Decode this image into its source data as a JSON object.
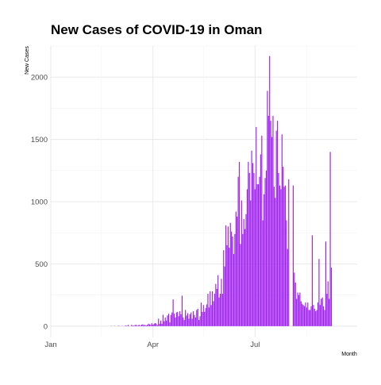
{
  "chart_data": {
    "type": "bar",
    "title": "New Cases of COVID-19 in Oman",
    "xlabel": "Month",
    "ylabel": "New Cases",
    "x_tick_labels": [
      "Jan",
      "Apr",
      "Jul"
    ],
    "y_ticks": [
      0,
      500,
      1000,
      1500,
      2000
    ],
    "x_range": [
      "2020-01-01",
      "2020-09-30"
    ],
    "ylim": [
      -90,
      2250
    ],
    "grid": true,
    "bar_color": "#a020f0",
    "series": [
      {
        "start_date": "2020-02-24",
        "values": [
          2,
          0,
          1,
          2,
          0,
          0,
          3,
          2,
          0,
          1,
          2,
          0,
          3,
          5,
          3,
          10,
          2,
          0,
          10,
          5,
          4,
          9,
          10,
          4,
          8,
          10,
          4,
          12,
          15,
          8,
          10,
          6,
          10,
          20,
          15,
          10,
          24,
          11,
          20,
          25,
          21,
          8,
          60,
          20,
          45,
          19,
          92,
          40,
          70,
          45,
          86,
          100,
          30,
          90,
          110,
          215,
          100,
          70,
          110,
          115,
          80,
          120,
          95,
          245,
          70,
          50,
          130,
          85,
          105,
          60,
          95,
          110,
          60,
          120,
          90,
          70,
          130,
          140,
          50,
          80,
          190,
          115,
          170,
          115,
          145,
          175,
          260,
          150,
          280,
          170,
          280,
          200,
          260,
          340,
          300,
          410,
          230,
          260,
          380,
          260,
          610,
          480,
          810,
          650,
          800,
          630,
          830,
          760,
          720,
          580,
          740,
          920,
          880,
          1200,
          1320,
          660,
          1010,
          740,
          860,
          780,
          900,
          1100,
          1320,
          1230,
          1010,
          1410,
          1310,
          1230,
          1100,
          1600,
          1140,
          1140,
          1200,
          1380,
          1530,
          850,
          1060,
          1190,
          1250,
          1890,
          1690,
          2170,
          1650,
          1520,
          1690,
          1120,
          1030,
          1570,
          1650,
          1230,
          1130,
          1100,
          1540,
          1280,
          1120,
          1130,
          850,
          620,
          1180,
          0,
          0,
          0,
          1130,
          430,
          350,
          220,
          270,
          250,
          270,
          200,
          180,
          170,
          160,
          190,
          150,
          190,
          130,
          130,
          160,
          730,
          170,
          140,
          120,
          130,
          190,
          540,
          170,
          220,
          230,
          160,
          130,
          680,
          260,
          360,
          220,
          1400,
          470
        ]
      }
    ]
  }
}
